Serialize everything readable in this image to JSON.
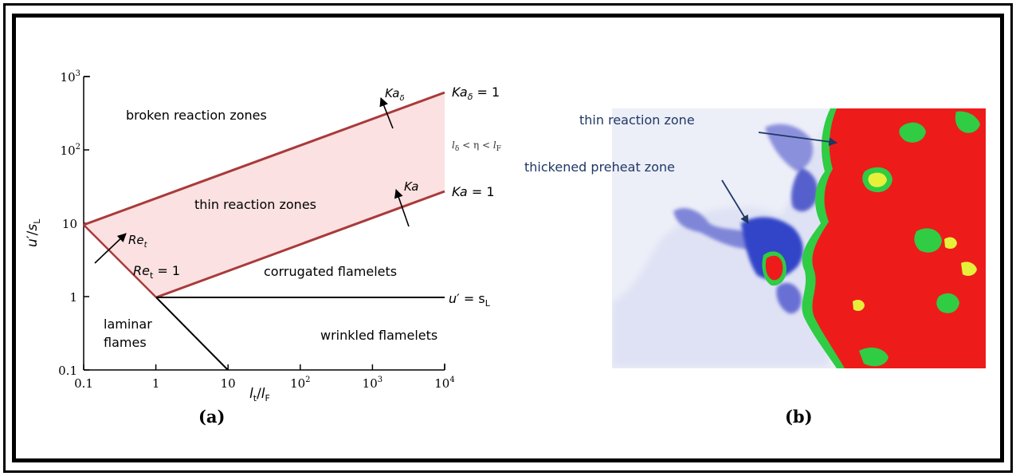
{
  "panel_a": {
    "caption": "(a)",
    "x_label": {
      "main": "l",
      "sub1": "t",
      "slash": "/",
      "main2": "l",
      "sub2": "F"
    },
    "y_label": {
      "main": "u",
      "prime": "′",
      "slash": "/",
      "main2": "s",
      "sub": "L"
    },
    "x_ticks": [
      {
        "value": 0.1,
        "label": "0.1"
      },
      {
        "value": 1,
        "label": "1"
      },
      {
        "value": 10,
        "label": "10"
      },
      {
        "value": 100,
        "label": "10",
        "sup": "2"
      },
      {
        "value": 1000,
        "label": "10",
        "sup": "3"
      },
      {
        "value": 10000,
        "label": "10",
        "sup": "4"
      }
    ],
    "y_ticks": [
      {
        "value": 0.1,
        "label": "0.1"
      },
      {
        "value": 1,
        "label": "1"
      },
      {
        "value": 10,
        "label": "10"
      },
      {
        "value": 100,
        "label": "10",
        "sup": "2"
      },
      {
        "value": 1000,
        "label": "10",
        "sup": "3"
      }
    ],
    "regions": {
      "broken": "broken reaction zones",
      "thin": "thin reaction zones",
      "corrugated": "corrugated flamelets",
      "laminar_1": "laminar",
      "laminar_2": "flames",
      "wrinkled": "wrinkled flamelets"
    },
    "line_labels": {
      "ka_delta_eq_1": {
        "main": "Ka",
        "sub": "δ",
        "rest": " = 1"
      },
      "ka_eq_1": {
        "main": "Ka",
        "rest": " = 1"
      },
      "u_eq_sl": {
        "main": "u",
        "prime": "′",
        "rest": " = s",
        "sub": "L"
      },
      "re_eq_1": {
        "main": "Re",
        "sub": "t",
        "rest": " = 1"
      }
    },
    "arrow_labels": {
      "ka_delta": {
        "main": "Ka",
        "sub": "δ"
      },
      "ka": {
        "main": "Ka"
      },
      "re": {
        "main": "Re",
        "sub": "t"
      }
    },
    "inequality": {
      "a": "l",
      "a_sub": "δ",
      "op1": " < η < ",
      "b": "l",
      "b_sub": "F"
    },
    "colors": {
      "boundary": "#a93a3a",
      "shade": "#fbe1e1",
      "axis": "#000000"
    }
  },
  "panel_b": {
    "caption": "(b)",
    "annotations": {
      "thin_zone": "thin reaction zone",
      "preheat_zone": "thickened preheat zone"
    },
    "colors": {
      "background": "#eceef8",
      "reaction": "#ee1b1b",
      "front_green": "#2fcc44",
      "front_yellow": "#e6f03a",
      "preheat_blue": "#3344c8",
      "annotation_text": "#1f3864"
    }
  }
}
